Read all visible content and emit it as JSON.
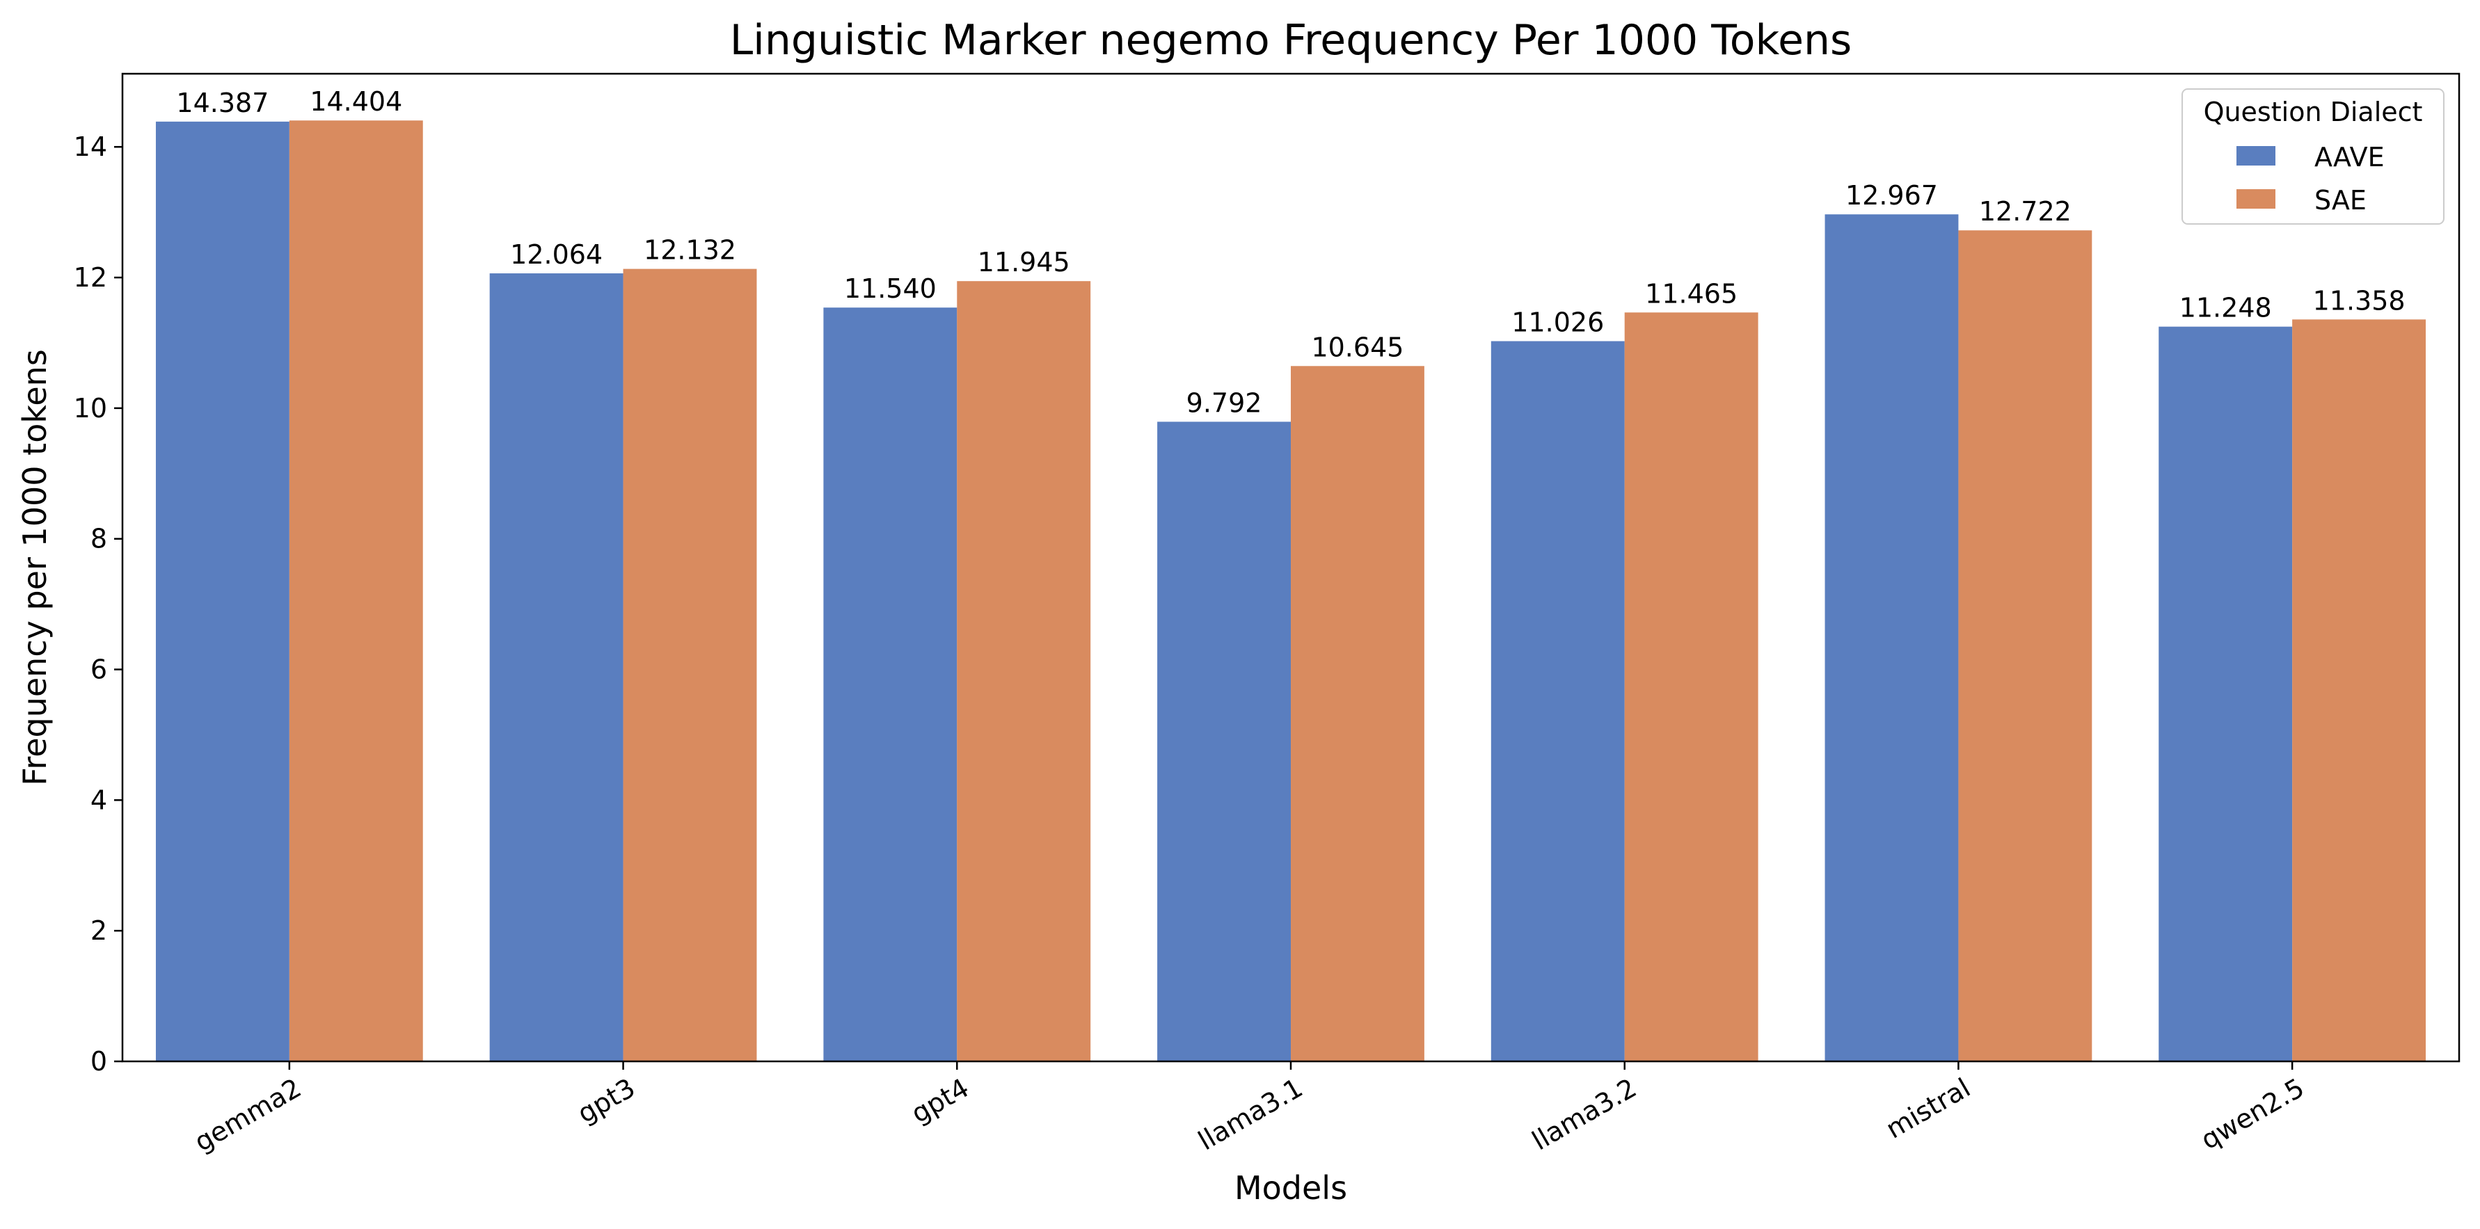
{
  "chart_data": {
    "type": "bar",
    "title": "Linguistic Marker negemo Frequency Per 1000 Tokens",
    "xlabel": "Models",
    "ylabel": "Frequency per 1000 tokens",
    "categories": [
      "gemma2",
      "gpt3",
      "gpt4",
      "llama3.1",
      "llama3.2",
      "mistral",
      "qwen2.5"
    ],
    "series": [
      {
        "name": "AAVE",
        "color": "#5a7ebf",
        "values": [
          14.387,
          12.064,
          11.54,
          9.792,
          11.026,
          12.967,
          11.248
        ],
        "labels": [
          "14.387",
          "12.064",
          "11.540",
          "9.792",
          "11.026",
          "12.967",
          "11.248"
        ]
      },
      {
        "name": "SAE",
        "color": "#d98b5f",
        "values": [
          14.404,
          12.132,
          11.945,
          10.645,
          11.465,
          12.722,
          11.358
        ],
        "labels": [
          "14.404",
          "12.132",
          "11.945",
          "10.645",
          "11.465",
          "12.722",
          "11.358"
        ]
      }
    ],
    "ylim": [
      0,
      15.12
    ],
    "yticks": [
      "0",
      "2",
      "4",
      "6",
      "8",
      "10",
      "12",
      "14"
    ],
    "xtick_rotation_deg": -30,
    "grid": false,
    "legend": {
      "title": "Question Dialect",
      "placement": "top-right"
    }
  }
}
